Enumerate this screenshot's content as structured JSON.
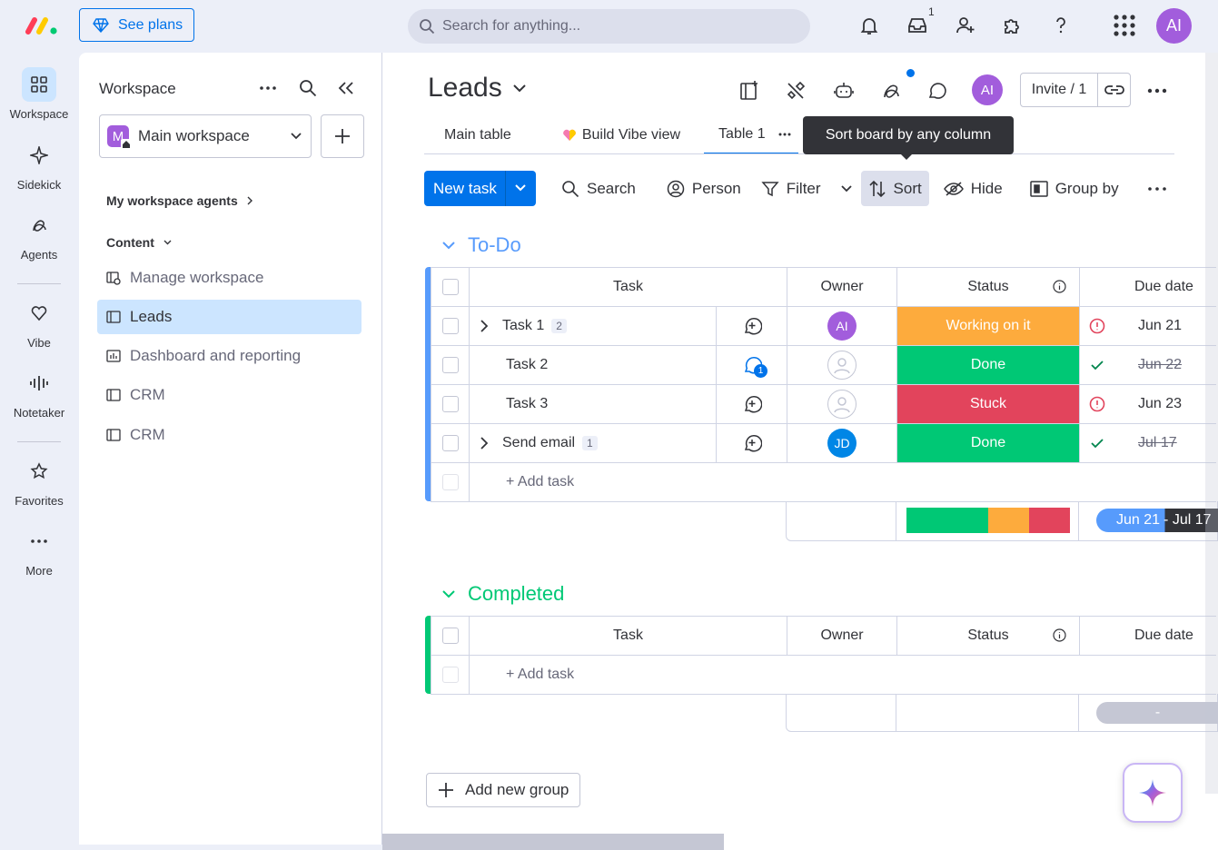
{
  "topbar": {
    "see_plans": "See plans",
    "search_placeholder": "Search for anything...",
    "inbox_count": "1",
    "user_initials": "AI"
  },
  "rail": {
    "items": [
      {
        "label": "Workspace",
        "icon": "grid-icon"
      },
      {
        "label": "Sidekick",
        "icon": "sparkle-icon"
      },
      {
        "label": "Agents",
        "icon": "agent-icon"
      },
      {
        "label": "Vibe",
        "icon": "heart-icon"
      },
      {
        "label": "Notetaker",
        "icon": "waveform-icon"
      },
      {
        "label": "Favorites",
        "icon": "star-icon"
      },
      {
        "label": "More",
        "icon": "more-dots-icon"
      }
    ]
  },
  "workspace_panel": {
    "title": "Workspace",
    "selected_workspace": "Main workspace",
    "workspace_badge": "M",
    "agents_link": "My workspace agents",
    "content_label": "Content",
    "items": [
      {
        "label": "Manage workspace",
        "icon": "manage-icon"
      },
      {
        "label": "Leads",
        "icon": "board-icon"
      },
      {
        "label": "Dashboard and reporting",
        "icon": "dashboard-icon"
      },
      {
        "label": "CRM",
        "icon": "board-icon"
      },
      {
        "label": "CRM",
        "icon": "board-icon"
      }
    ]
  },
  "board": {
    "title": "Leads",
    "invite_label": "Invite / 1",
    "avatar": "AI",
    "tabs": [
      "Main table",
      "Build Vibe view",
      "Table 1"
    ],
    "tooltip": "Sort board by any column",
    "toolbar": {
      "new_task": "New task",
      "search": "Search",
      "person": "Person",
      "filter": "Filter",
      "sort": "Sort",
      "hide": "Hide",
      "group_by": "Group by"
    },
    "columns": {
      "task": "Task",
      "owner": "Owner",
      "status": "Status",
      "due_date": "Due date"
    },
    "add_task": "+ Add task",
    "add_group": "Add new group",
    "colors": {
      "working": "#fdab3d",
      "done": "#00c875",
      "stuck": "#e2445c",
      "todo_group": "#579bfc",
      "completed_group": "#00c875"
    }
  },
  "groups": [
    {
      "name": "To-Do",
      "rows": [
        {
          "task": "Task 1",
          "subitems": "2",
          "owner": "AI",
          "status": "Working on it",
          "status_color": "#fdab3d",
          "due": "Jun 21",
          "due_done": false,
          "alert": true
        },
        {
          "task": "Task 2",
          "subitems": "",
          "owner": "",
          "status": "Done",
          "status_color": "#00c875",
          "due": "Jun 22",
          "due_done": true,
          "alert": false,
          "updates": "1"
        },
        {
          "task": "Task 3",
          "subitems": "",
          "owner": "",
          "status": "Stuck",
          "status_color": "#e2445c",
          "due": "Jun 23",
          "due_done": false,
          "alert": true
        },
        {
          "task": "Send email",
          "subitems": "1",
          "owner": "JD",
          "status": "Done",
          "status_color": "#00c875",
          "due": "Jul 17",
          "due_done": true,
          "alert": false
        }
      ],
      "summary": {
        "timeline_start": "Jun 21",
        "timeline_end": "- Jul 17",
        "status_distribution": [
          {
            "color": "#00c875",
            "fraction": 0.5
          },
          {
            "color": "#fdab3d",
            "fraction": 0.25
          },
          {
            "color": "#e2445c",
            "fraction": 0.25
          }
        ]
      }
    },
    {
      "name": "Completed",
      "rows": [],
      "summary": {
        "timeline_placeholder": "-"
      }
    }
  ]
}
